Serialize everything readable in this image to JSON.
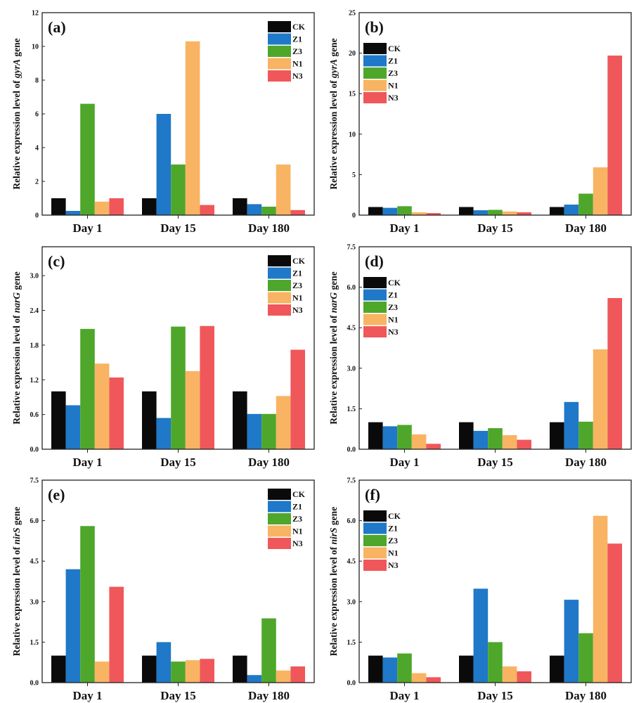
{
  "chart_data": [
    {
      "type": "bar",
      "panel_label": "(a)",
      "ylabel_pre": "Relative expression level of ",
      "gene": "gyrA",
      "ylabel_post": " gene",
      "categories": [
        "Day 1",
        "Day 15",
        "Day 180"
      ],
      "ylim": [
        0,
        12
      ],
      "yticks": [
        "0",
        "2",
        "4",
        "6",
        "8",
        "10",
        "12"
      ],
      "legend_position": "top-right",
      "series": [
        {
          "name": "CK",
          "values": [
            1.0,
            1.0,
            1.0
          ]
        },
        {
          "name": "Z1",
          "values": [
            0.25,
            6.0,
            0.65
          ]
        },
        {
          "name": "Z3",
          "values": [
            6.6,
            3.0,
            0.5
          ]
        },
        {
          "name": "N1",
          "values": [
            0.8,
            10.3,
            3.0
          ]
        },
        {
          "name": "N3",
          "values": [
            1.0,
            0.6,
            0.3
          ]
        }
      ]
    },
    {
      "type": "bar",
      "panel_label": "(b)",
      "ylabel_pre": "Relative expression level of ",
      "gene": "gyrA",
      "ylabel_post": " gene",
      "categories": [
        "Day 1",
        "Day 15",
        "Day 180"
      ],
      "ylim": [
        0,
        25
      ],
      "yticks": [
        "0",
        "5",
        "10",
        "15",
        "20",
        "25"
      ],
      "legend_position": "top-left",
      "series": [
        {
          "name": "CK",
          "values": [
            1.0,
            1.0,
            1.0
          ]
        },
        {
          "name": "Z1",
          "values": [
            0.9,
            0.6,
            1.3
          ]
        },
        {
          "name": "Z3",
          "values": [
            1.1,
            0.65,
            2.65
          ]
        },
        {
          "name": "N1",
          "values": [
            0.35,
            0.45,
            5.9
          ]
        },
        {
          "name": "N3",
          "values": [
            0.25,
            0.35,
            19.7
          ]
        }
      ]
    },
    {
      "type": "bar",
      "panel_label": "(c)",
      "ylabel_pre": "Relative expression level of ",
      "gene": "narG",
      "ylabel_post": " gene",
      "categories": [
        "Day 1",
        "Day 15",
        "Day 180"
      ],
      "ylim": [
        0,
        3.5
      ],
      "yticks": [
        "0.0",
        "0.6",
        "1.2",
        "1.8",
        "2.4",
        "3.0"
      ],
      "legend_position": "top-right",
      "series": [
        {
          "name": "CK",
          "values": [
            1.0,
            1.0,
            1.0
          ]
        },
        {
          "name": "Z1",
          "values": [
            0.76,
            0.54,
            0.61
          ]
        },
        {
          "name": "Z3",
          "values": [
            2.08,
            2.12,
            0.61
          ]
        },
        {
          "name": "N1",
          "values": [
            1.48,
            1.35,
            0.92
          ]
        },
        {
          "name": "N3",
          "values": [
            1.24,
            2.13,
            1.72
          ]
        }
      ]
    },
    {
      "type": "bar",
      "panel_label": "(d)",
      "ylabel_pre": "Relative expression level of ",
      "gene": "narG",
      "ylabel_post": " gene",
      "categories": [
        "Day 1",
        "Day 15",
        "Day 180"
      ],
      "ylim": [
        0,
        7.5
      ],
      "yticks": [
        "0.0",
        "1.5",
        "3.0",
        "4.5",
        "6.0",
        "7.5"
      ],
      "legend_position": "top-left",
      "series": [
        {
          "name": "CK",
          "values": [
            1.0,
            1.0,
            1.0
          ]
        },
        {
          "name": "Z1",
          "values": [
            0.85,
            0.68,
            1.75
          ]
        },
        {
          "name": "Z3",
          "values": [
            0.9,
            0.78,
            1.02
          ]
        },
        {
          "name": "N1",
          "values": [
            0.55,
            0.52,
            3.7
          ]
        },
        {
          "name": "N3",
          "values": [
            0.2,
            0.35,
            5.6
          ]
        }
      ]
    },
    {
      "type": "bar",
      "panel_label": "(e)",
      "ylabel_pre": "Relative expression level of ",
      "gene": "nirS",
      "ylabel_post": " gene",
      "categories": [
        "Day 1",
        "Day 15",
        "Day 180"
      ],
      "ylim": [
        0,
        7.5
      ],
      "yticks": [
        "0.0",
        "1.5",
        "3.0",
        "4.5",
        "6.0",
        "7.5"
      ],
      "legend_position": "top-right",
      "series": [
        {
          "name": "CK",
          "values": [
            1.0,
            1.0,
            1.0
          ]
        },
        {
          "name": "Z1",
          "values": [
            4.2,
            1.5,
            0.28
          ]
        },
        {
          "name": "Z3",
          "values": [
            5.8,
            0.78,
            2.38
          ]
        },
        {
          "name": "N1",
          "values": [
            0.78,
            0.83,
            0.45
          ]
        },
        {
          "name": "N3",
          "values": [
            3.55,
            0.88,
            0.6
          ]
        }
      ]
    },
    {
      "type": "bar",
      "panel_label": "(f)",
      "ylabel_pre": "Relative expression level of ",
      "gene": "nirS",
      "ylabel_post": " gene",
      "categories": [
        "Day 1",
        "Day 15",
        "Day 180"
      ],
      "ylim": [
        0,
        7.5
      ],
      "yticks": [
        "0.0",
        "1.5",
        "3.0",
        "4.5",
        "6.0",
        "7.5"
      ],
      "legend_position": "top-left",
      "series": [
        {
          "name": "CK",
          "values": [
            1.0,
            1.0,
            1.0
          ]
        },
        {
          "name": "Z1",
          "values": [
            0.93,
            3.48,
            3.07
          ]
        },
        {
          "name": "Z3",
          "values": [
            1.08,
            1.5,
            1.83
          ]
        },
        {
          "name": "N1",
          "values": [
            0.35,
            0.6,
            6.18
          ]
        },
        {
          "name": "N3",
          "values": [
            0.2,
            0.42,
            5.15
          ]
        }
      ]
    }
  ],
  "colors": {
    "CK": "#0a0a0a",
    "Z1": "#1f78c8",
    "Z3": "#4ea72a",
    "N1": "#f8b462",
    "N3": "#f0575a"
  }
}
